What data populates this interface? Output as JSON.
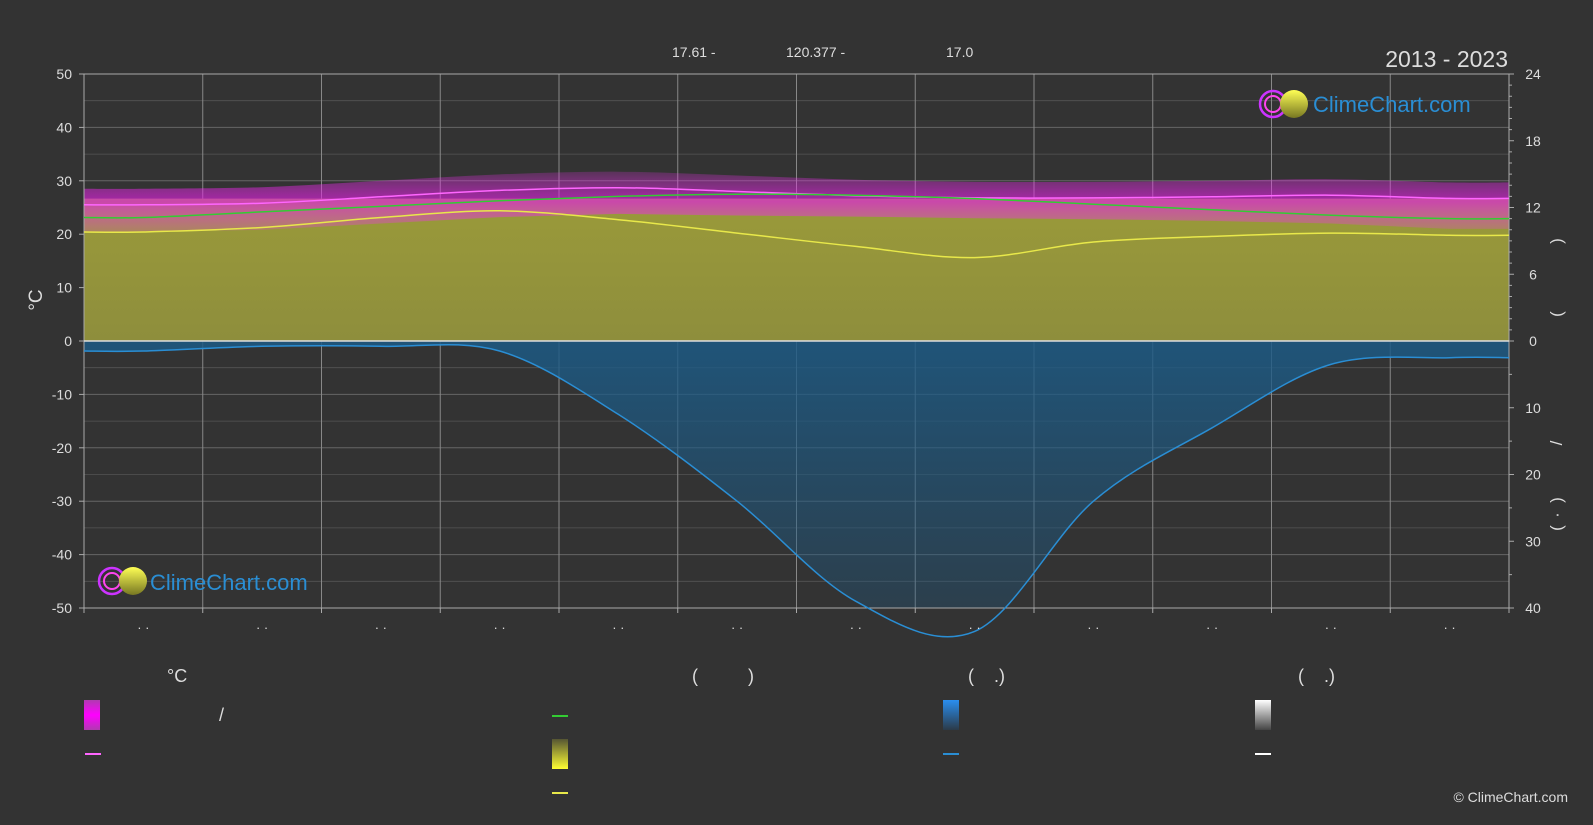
{
  "header": {
    "period": "2013 - 2023",
    "latitude": "17.61 -",
    "longitude": "120.377 -",
    "elevation": "17.0"
  },
  "watermark": {
    "brand": "ClimeChart.com"
  },
  "copyright": "© ClimeChart.com",
  "chart_data": {
    "type": "area",
    "left_axis": {
      "label": "°C",
      "ylim": [
        -50,
        50
      ],
      "ticks": [
        "50",
        "40",
        "30",
        "20",
        "10",
        "0",
        "-10",
        "-20",
        "-30",
        "-40",
        "-50"
      ]
    },
    "right_axis_top": {
      "ylim": [
        0,
        24
      ],
      "ticks": [
        "24",
        "18",
        "12",
        "6",
        "0"
      ],
      "label_fragments": [
        "(",
        ")"
      ]
    },
    "right_axis_bottom": {
      "ylim": [
        0,
        40
      ],
      "ticks": [
        "0",
        "10",
        "20",
        "30",
        "40"
      ],
      "label_fragments": [
        "/",
        "(",
        "·",
        ")"
      ]
    },
    "x_tick_labels": [
      "· ·",
      "· ·",
      "· ·",
      "· ·",
      "· ·",
      "· ·",
      "· ·",
      "· ·",
      "· ·",
      "· ·",
      "· ·",
      "· ·"
    ],
    "months": [
      1,
      2,
      3,
      4,
      5,
      6,
      7,
      8,
      9,
      10,
      11,
      12
    ],
    "series": [
      {
        "key": "max_temp_mean",
        "color": "#ff66ff",
        "values": [
          25.5,
          25.8,
          27.0,
          28.2,
          28.7,
          28.0,
          27.2,
          26.8,
          26.8,
          27.0,
          27.3,
          26.7
        ]
      },
      {
        "key": "min_temp_mean",
        "color": "#ff66ff",
        "values": [
          20.5,
          20.8,
          22.0,
          23.2,
          23.8,
          23.5,
          23.3,
          23.0,
          22.8,
          22.5,
          22.0,
          21.0
        ]
      },
      {
        "key": "daylight_hours",
        "color": "#33cc33",
        "values": [
          11.1,
          11.6,
          12.1,
          12.6,
          13.0,
          13.2,
          13.1,
          12.8,
          12.3,
          11.8,
          11.3,
          11.0
        ]
      },
      {
        "key": "sunshine_hours",
        "color": "#e8e84a",
        "values": [
          9.8,
          10.2,
          11.1,
          11.7,
          10.9,
          9.7,
          8.5,
          7.5,
          8.9,
          9.4,
          9.7,
          9.5
        ]
      },
      {
        "key": "precipitation_mm",
        "color": "#2a8ed4",
        "values": [
          1.5,
          0.8,
          0.8,
          1.5,
          11.0,
          24.0,
          39.0,
          43.5,
          24.0,
          13.0,
          3.5,
          2.5
        ]
      }
    ]
  },
  "legend": {
    "columns": [
      {
        "header": "°C",
        "items": [
          {
            "icon": "magenta-gradient-swatch",
            "text": "/"
          },
          {
            "icon": "magenta-line",
            "text": ""
          }
        ]
      },
      {
        "header": "(          )",
        "items": [
          {
            "icon": "green-line",
            "text": ""
          },
          {
            "icon": "yellow-gradient-swatch",
            "text": ""
          },
          {
            "icon": "yellow-line",
            "text": ""
          }
        ]
      },
      {
        "header": "(    .)",
        "items": [
          {
            "icon": "blue-gradient-swatch",
            "text": ""
          },
          {
            "icon": "blue-line",
            "text": ""
          }
        ]
      },
      {
        "header": "(    .)",
        "items": [
          {
            "icon": "white-gradient-swatch",
            "text": ""
          },
          {
            "icon": "white-line",
            "text": ""
          }
        ]
      }
    ]
  },
  "colors": {
    "background": "#333333",
    "grid": "#7a7a7a",
    "temperature": "#ff66ff",
    "daylight": "#33cc33",
    "sunshine": "#e8e84a",
    "precipitation": "#2a8ed4",
    "brand": "#2a8ed4"
  }
}
